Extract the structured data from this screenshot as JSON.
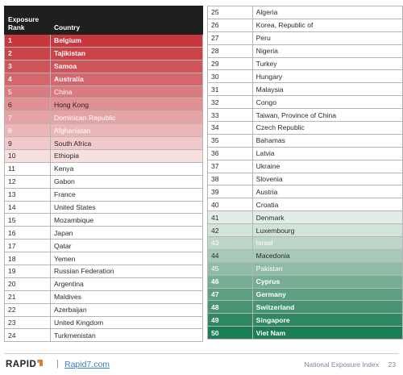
{
  "header": {
    "rank_label": "Exposure\nRank",
    "country_label": "Country"
  },
  "colors": {
    "header_bg": "#1f1f1f",
    "top_accent": "#c0392b",
    "bottom_accent": "#1b8a63"
  },
  "left_rows": [
    {
      "rank": "1",
      "country": "Belgium",
      "bg": "#c6373e",
      "fg": "#ffffff",
      "bold": true
    },
    {
      "rank": "2",
      "country": "Tajikistan",
      "bg": "#c94348",
      "fg": "#ffffff",
      "bold": true
    },
    {
      "rank": "3",
      "country": "Samoa",
      "bg": "#ce5459",
      "fg": "#ffffff",
      "bold": true
    },
    {
      "rank": "4",
      "country": "Australia",
      "bg": "#d4676b",
      "fg": "#ffffff",
      "bold": true
    },
    {
      "rank": "5",
      "country": "China",
      "bg": "#da7b7f",
      "fg": "#ffffff",
      "bold": false
    },
    {
      "rank": "6",
      "country": "Hong Kong",
      "bg": "#e08f92",
      "fg": "#2a2a2a",
      "bold": false
    },
    {
      "rank": "7",
      "country": "Dominican Republic",
      "bg": "#e6a3a6",
      "fg": "#ffffff",
      "bold": false
    },
    {
      "rank": "8",
      "country": "Afghanistan",
      "bg": "#ecb6b8",
      "fg": "#ffffff",
      "bold": false
    },
    {
      "rank": "9",
      "country": "South Africa",
      "bg": "#f1c9ca",
      "fg": "#2a2a2a",
      "bold": false
    },
    {
      "rank": "10",
      "country": "Ethiopia",
      "bg": "#f7dfe0",
      "fg": "#2a2a2a",
      "bold": false
    },
    {
      "rank": "11",
      "country": "Kenya"
    },
    {
      "rank": "12",
      "country": "Gabon"
    },
    {
      "rank": "13",
      "country": "France"
    },
    {
      "rank": "14",
      "country": "United States"
    },
    {
      "rank": "15",
      "country": "Mozambique"
    },
    {
      "rank": "16",
      "country": "Japan"
    },
    {
      "rank": "17",
      "country": "Qatar"
    },
    {
      "rank": "18",
      "country": "Yemen"
    },
    {
      "rank": "19",
      "country": "Russian Federation"
    },
    {
      "rank": "20",
      "country": "Argentina"
    },
    {
      "rank": "21",
      "country": "Maldives"
    },
    {
      "rank": "22",
      "country": "Azerbaijan"
    },
    {
      "rank": "23",
      "country": "United Kingdom"
    },
    {
      "rank": "24",
      "country": "Turkmenistan"
    }
  ],
  "right_rows": [
    {
      "rank": "25",
      "country": "Algeria"
    },
    {
      "rank": "26",
      "country": "Korea, Republic of"
    },
    {
      "rank": "27",
      "country": "Peru"
    },
    {
      "rank": "28",
      "country": "Nigeria"
    },
    {
      "rank": "29",
      "country": "Turkey"
    },
    {
      "rank": "30",
      "country": "Hungary"
    },
    {
      "rank": "31",
      "country": "Malaysia"
    },
    {
      "rank": "32",
      "country": "Congo"
    },
    {
      "rank": "33",
      "country": "Taiwan, Province of China"
    },
    {
      "rank": "34",
      "country": "Czech Republic"
    },
    {
      "rank": "35",
      "country": "Bahamas"
    },
    {
      "rank": "36",
      "country": "Latvia"
    },
    {
      "rank": "37",
      "country": "Ukraine"
    },
    {
      "rank": "38",
      "country": "Slovenia"
    },
    {
      "rank": "39",
      "country": "Austria"
    },
    {
      "rank": "40",
      "country": "Croatia"
    },
    {
      "rank": "41",
      "country": "Denmark",
      "bg": "#e3ede8",
      "fg": "#2a2a2a",
      "bold": false
    },
    {
      "rank": "42",
      "country": "Luxembourg",
      "bg": "#d2e3da",
      "fg": "#2a2a2a",
      "bold": false
    },
    {
      "rank": "43",
      "country": "Israel",
      "bg": "#bcd6c9",
      "fg": "#ffffff",
      "bold": false
    },
    {
      "rank": "44",
      "country": "Macedonia",
      "bg": "#a6c9b8",
      "fg": "#2a2a2a",
      "bold": false
    },
    {
      "rank": "45",
      "country": "Pakistan",
      "bg": "#8fbca6",
      "fg": "#ffffff",
      "bold": false
    },
    {
      "rank": "46",
      "country": "Cyprus",
      "bg": "#76ae94",
      "fg": "#ffffff",
      "bold": true
    },
    {
      "rank": "47",
      "country": "Germany",
      "bg": "#5ea182",
      "fg": "#ffffff",
      "bold": true
    },
    {
      "rank": "48",
      "country": "Switzerland",
      "bg": "#469471",
      "fg": "#ffffff",
      "bold": true
    },
    {
      "rank": "49",
      "country": "Singapore",
      "bg": "#2f8860",
      "fg": "#ffffff",
      "bold": true
    },
    {
      "rank": "50",
      "country": "Viet Nam",
      "bg": "#1b7e55",
      "fg": "#ffffff",
      "bold": true
    }
  ],
  "footer": {
    "logo": "RAPID",
    "separator": "|",
    "link": "Rapid7.com",
    "title": "National Exposure Index",
    "page": "23"
  }
}
